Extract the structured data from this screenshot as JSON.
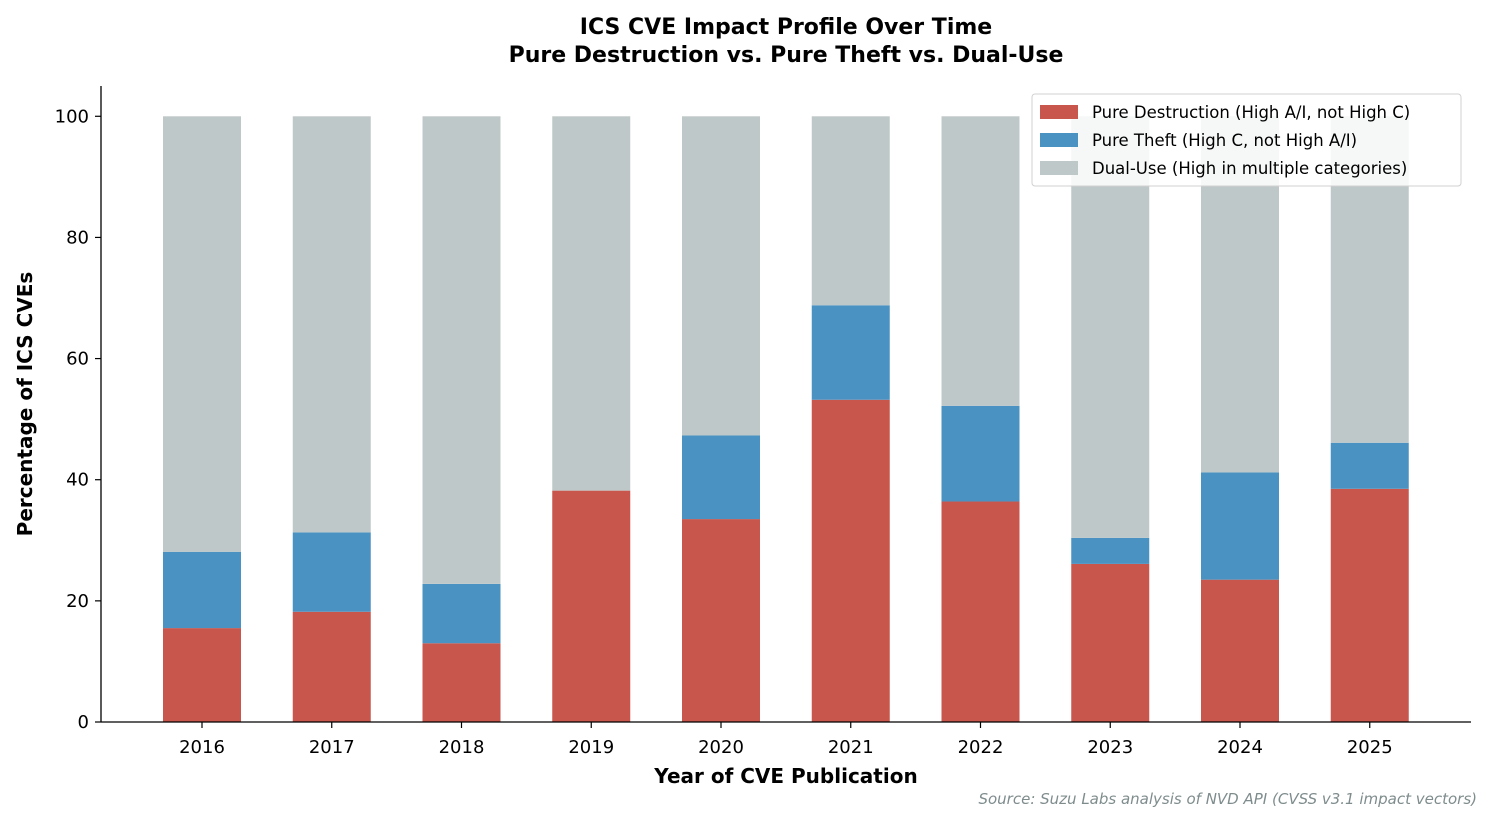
{
  "chart_data": {
    "type": "bar",
    "stacked": true,
    "title": "ICS CVE Impact Profile Over Time",
    "subtitle": "Pure Destruction vs. Pure Theft vs. Dual-Use",
    "xlabel": "Year of CVE Publication",
    "ylabel": "Percentage of ICS CVEs",
    "ylim": [
      0,
      105
    ],
    "yticks": [
      0,
      20,
      40,
      60,
      80,
      100
    ],
    "categories": [
      "2016",
      "2017",
      "2018",
      "2019",
      "2020",
      "2021",
      "2022",
      "2023",
      "2024",
      "2025"
    ],
    "series": [
      {
        "name": "Pure Destruction (High A/I, not High C)",
        "color": "#c9564c",
        "values": [
          15.5,
          18.2,
          13.0,
          38.2,
          33.5,
          53.2,
          36.4,
          26.1,
          23.5,
          38.5
        ]
      },
      {
        "name": "Pure Theft (High C, not High A/I)",
        "color": "#4a92c2",
        "values": [
          12.6,
          13.1,
          9.8,
          0.0,
          13.8,
          15.6,
          15.8,
          4.3,
          17.7,
          7.6
        ]
      },
      {
        "name": "Dual-Use (High in multiple categories)",
        "color": "#bfc8c9",
        "values": [
          71.9,
          68.7,
          77.2,
          61.8,
          52.7,
          31.2,
          47.8,
          69.6,
          58.8,
          53.9
        ]
      }
    ],
    "legend": "top-right",
    "grid": false,
    "source": "Source: Suzu Labs analysis of NVD API (CVSS v3.1 impact vectors)"
  }
}
